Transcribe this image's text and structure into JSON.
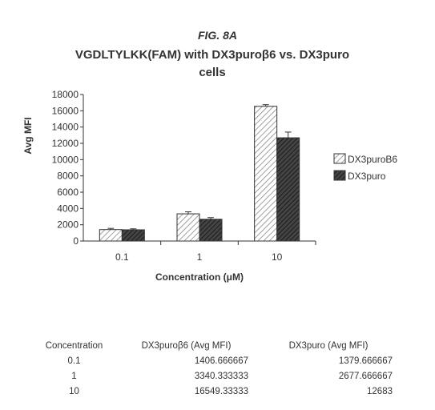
{
  "figure_label": "FIG. 8A",
  "chart_data": {
    "type": "bar",
    "title": "VGDLTYLKK(FAM) with DX3puroβ6 vs. DX3puro cells",
    "title_lines": [
      "VGDLTYLKK(FAM) with DX3puroβ6 vs. DX3puro",
      "cells"
    ],
    "xlabel": "Concentration (μM)",
    "ylabel": "Avg MFI",
    "categories": [
      "0.1",
      "1",
      "10"
    ],
    "ylim": [
      0,
      18000
    ],
    "yticks": [
      0,
      2000,
      4000,
      6000,
      8000,
      10000,
      12000,
      14000,
      16000,
      18000
    ],
    "grid": false,
    "legend_position": "right",
    "series": [
      {
        "name": "DX3puroB6",
        "values": [
          1406.666667,
          3340.333333,
          16549.33333
        ],
        "errors": [
          150,
          250,
          200
        ],
        "pattern": "light-hatch"
      },
      {
        "name": "DX3puro",
        "values": [
          1379.666667,
          2677.666667,
          12683
        ],
        "errors": [
          120,
          200,
          700
        ],
        "pattern": "dark-hatch"
      }
    ]
  },
  "table": {
    "headers": [
      "Concentration",
      "DX3puroβ6 (Avg MFI)",
      "DX3puro (Avg MFI)"
    ],
    "rows": [
      [
        "0.1",
        "1406.666667",
        "1379.666667"
      ],
      [
        "1",
        "3340.333333",
        "2677.666667"
      ],
      [
        "10",
        "16549.33333",
        "12683"
      ]
    ]
  }
}
